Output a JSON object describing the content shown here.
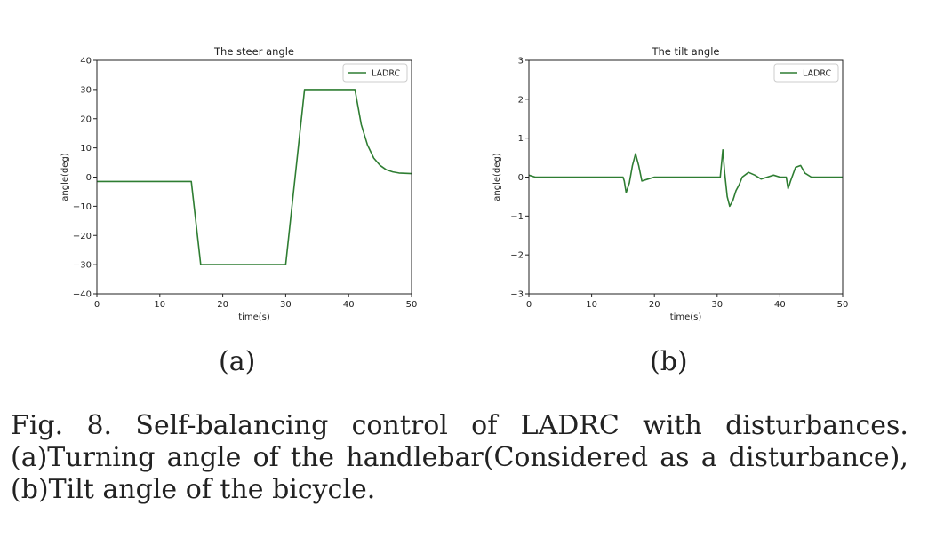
{
  "charts": [
    {
      "type": "line",
      "title": "The steer angle",
      "xlabel": "time(s)",
      "ylabel": "angle(deg)",
      "xlim": [
        0,
        50
      ],
      "ylim": [
        -40,
        40
      ],
      "xticks": [
        0,
        10,
        20,
        30,
        40,
        50
      ],
      "yticks": [
        40,
        30,
        20,
        10,
        0,
        -10,
        -20,
        -30,
        -40
      ],
      "ytick_labels": [
        "40",
        "30",
        "20",
        "10",
        "0",
        "−10",
        "−20",
        "−30",
        "−40"
      ],
      "grid": false,
      "legend_position": "top-right",
      "series": [
        {
          "name": "LADRC",
          "color": "#2e7d32",
          "x": [
            0,
            15,
            16.5,
            30,
            33,
            41,
            42,
            43,
            44,
            45,
            46,
            47,
            48,
            50
          ],
          "y": [
            -1.5,
            -1.5,
            -30,
            -30,
            30,
            30,
            18,
            11,
            6.5,
            4,
            2.5,
            1.8,
            1.4,
            1.2
          ]
        }
      ]
    },
    {
      "type": "line",
      "title": "The tilt angle",
      "xlabel": "time(s)",
      "ylabel": "angle(deg)",
      "xlim": [
        0,
        50
      ],
      "ylim": [
        -3,
        3
      ],
      "xticks": [
        0,
        10,
        20,
        30,
        40,
        50
      ],
      "yticks": [
        3,
        2,
        1,
        0,
        -1,
        -2,
        -3
      ],
      "ytick_labels": [
        "3",
        "2",
        "1",
        "0",
        "−1",
        "−2",
        "−3"
      ],
      "grid": false,
      "legend_position": "top-right",
      "series": [
        {
          "name": "LADRC",
          "color": "#2e7d32",
          "x": [
            0,
            1,
            3,
            15,
            15.2,
            15.5,
            16,
            16.5,
            17,
            17.5,
            18,
            19,
            20,
            22,
            25,
            28,
            30.5,
            30.9,
            31.2,
            31.6,
            32,
            32.5,
            33,
            33.5,
            34,
            35,
            36,
            37,
            38,
            39,
            40,
            41,
            41.3,
            41.7,
            42.5,
            43.3,
            44,
            45,
            46,
            50
          ],
          "y": [
            0.05,
            0.0,
            0.0,
            0.0,
            -0.1,
            -0.4,
            -0.15,
            0.3,
            0.6,
            0.3,
            -0.1,
            -0.05,
            0.0,
            0.0,
            0.0,
            0.0,
            0.0,
            0.7,
            0.1,
            -0.5,
            -0.75,
            -0.6,
            -0.35,
            -0.2,
            0.0,
            0.12,
            0.05,
            -0.05,
            0.0,
            0.05,
            0.0,
            0.0,
            -0.3,
            -0.1,
            0.25,
            0.3,
            0.1,
            0.0,
            0.0,
            0.0
          ]
        }
      ]
    }
  ],
  "sub_labels": [
    "(a)",
    "(b)"
  ],
  "caption": {
    "line1_words": [
      "Fig.",
      "8.",
      "Self-balancing",
      "control",
      "of",
      "LADRC",
      "with",
      "disturbances."
    ],
    "line2_words": [
      "(a)Turning",
      "angle",
      "of",
      "the",
      "handlebar(Considered",
      "as",
      "a",
      "disturbance),"
    ],
    "line3": "(b)Tilt angle of the bicycle."
  }
}
